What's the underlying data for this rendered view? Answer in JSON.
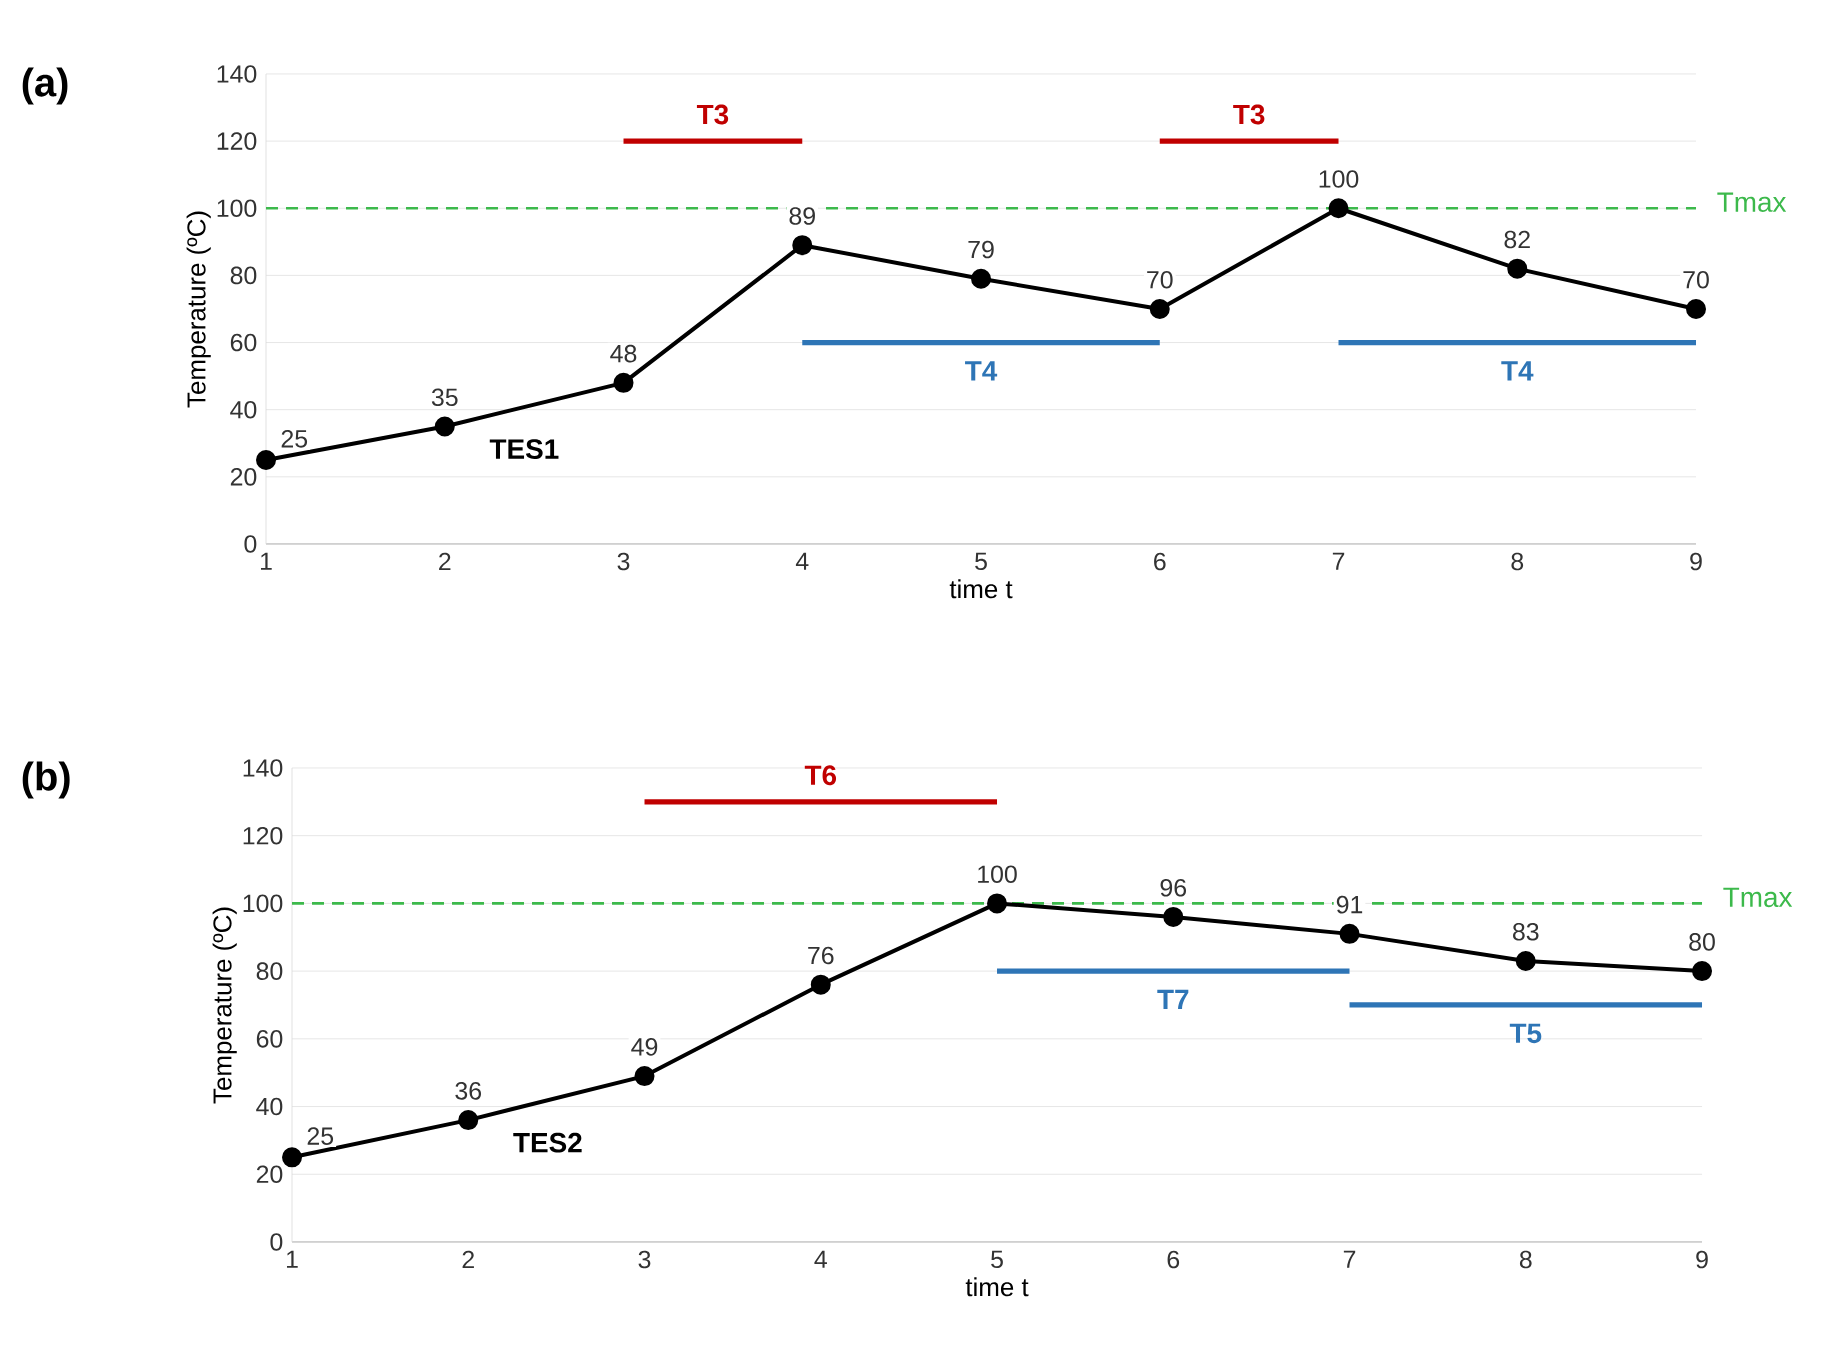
{
  "chart_data": [
    {
      "type": "line",
      "title": "(a)",
      "xlabel": "time t",
      "ylabel": "Temperature (ºC)",
      "x": [
        1,
        2,
        3,
        4,
        5,
        6,
        7,
        8,
        9
      ],
      "xlim": [
        1,
        9
      ],
      "xticks": [
        1,
        2,
        3,
        4,
        5,
        6,
        7,
        8,
        9
      ],
      "ylim": [
        0,
        140
      ],
      "yticks": [
        0,
        20,
        40,
        60,
        80,
        100,
        120,
        140
      ],
      "grid": "y",
      "series": [
        {
          "name": "TES1",
          "color": "#000000",
          "marker": "circle",
          "values": [
            25,
            35,
            48,
            89,
            79,
            70,
            100,
            82,
            70
          ],
          "value_labels": [
            "25",
            "35",
            "48",
            "89",
            "79",
            "70",
            "100",
            "82",
            "70"
          ]
        },
        {
          "name": "T3",
          "color": "#c00000",
          "x": [
            3,
            4
          ],
          "values": [
            120,
            120
          ]
        },
        {
          "name": "T3",
          "color": "#c00000",
          "x": [
            6,
            7
          ],
          "values": [
            120,
            120
          ]
        },
        {
          "name": "T4",
          "color": "#2e75b6",
          "x": [
            4,
            6
          ],
          "values": [
            60,
            60
          ]
        },
        {
          "name": "T4",
          "color": "#2e75b6",
          "x": [
            7,
            9
          ],
          "values": [
            60,
            60
          ]
        }
      ],
      "ref_lines": [
        {
          "axis": "y",
          "value": 100,
          "label": "Tmax",
          "color": "#3cb94b",
          "line_style": "dashed"
        }
      ]
    },
    {
      "type": "line",
      "title": "(b)",
      "xlabel": "time t",
      "ylabel": "Temperature (ºC)",
      "x": [
        1,
        2,
        3,
        4,
        5,
        6,
        7,
        8,
        9
      ],
      "xlim": [
        1,
        9
      ],
      "xticks": [
        1,
        2,
        3,
        4,
        5,
        6,
        7,
        8,
        9
      ],
      "ylim": [
        0,
        140
      ],
      "yticks": [
        0,
        20,
        40,
        60,
        80,
        100,
        120,
        140
      ],
      "grid": "y",
      "series": [
        {
          "name": "TES2",
          "color": "#000000",
          "marker": "circle",
          "values": [
            25,
            36,
            49,
            76,
            100,
            96,
            91,
            83,
            80
          ],
          "value_labels": [
            "25",
            "36",
            "49",
            "76",
            "100",
            "96",
            "91",
            "83",
            "80"
          ]
        },
        {
          "name": "T6",
          "color": "#c00000",
          "x": [
            3,
            5
          ],
          "values": [
            130,
            130
          ]
        },
        {
          "name": "T7",
          "color": "#2e75b6",
          "x": [
            5,
            7
          ],
          "values": [
            80,
            80
          ]
        },
        {
          "name": "T5",
          "color": "#2e75b6",
          "x": [
            7,
            9
          ],
          "values": [
            70,
            70
          ]
        }
      ],
      "ref_lines": [
        {
          "axis": "y",
          "value": 100,
          "label": "Tmax",
          "color": "#3cb94b",
          "line_style": "dashed"
        }
      ]
    }
  ]
}
